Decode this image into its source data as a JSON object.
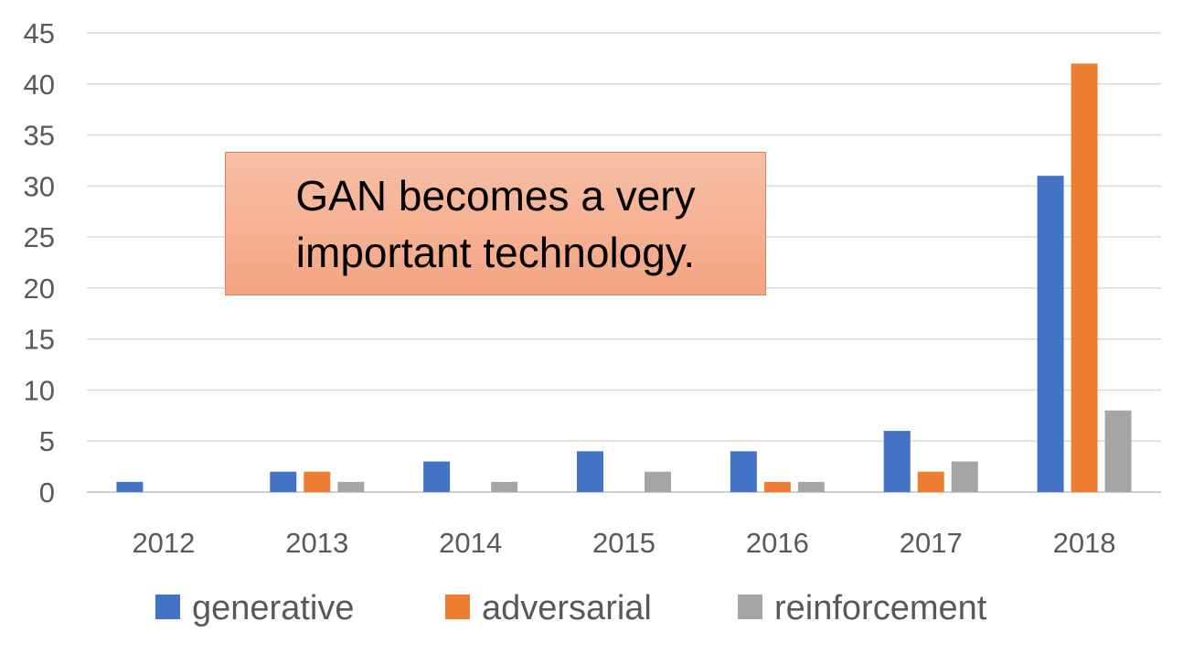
{
  "chart_data": {
    "type": "bar",
    "categories": [
      "2012",
      "2013",
      "2014",
      "2015",
      "2016",
      "2017",
      "2018"
    ],
    "series": [
      {
        "name": "generative",
        "color": "#4472c4",
        "values": [
          1,
          2,
          3,
          4,
          4,
          6,
          31
        ]
      },
      {
        "name": "adversarial",
        "color": "#ed7d31",
        "values": [
          0,
          2,
          0,
          0,
          1,
          2,
          42
        ]
      },
      {
        "name": "reinforcement",
        "color": "#a5a5a5",
        "values": [
          0,
          1,
          1,
          2,
          1,
          3,
          8
        ]
      }
    ],
    "yticks": [
      "0",
      "5",
      "10",
      "15",
      "20",
      "25",
      "30",
      "35",
      "40",
      "45"
    ],
    "ylim": [
      0,
      45
    ],
    "grid": true,
    "legend_position": "bottom",
    "annotation": {
      "lines": [
        "GAN becomes a very",
        "important technology."
      ]
    }
  }
}
